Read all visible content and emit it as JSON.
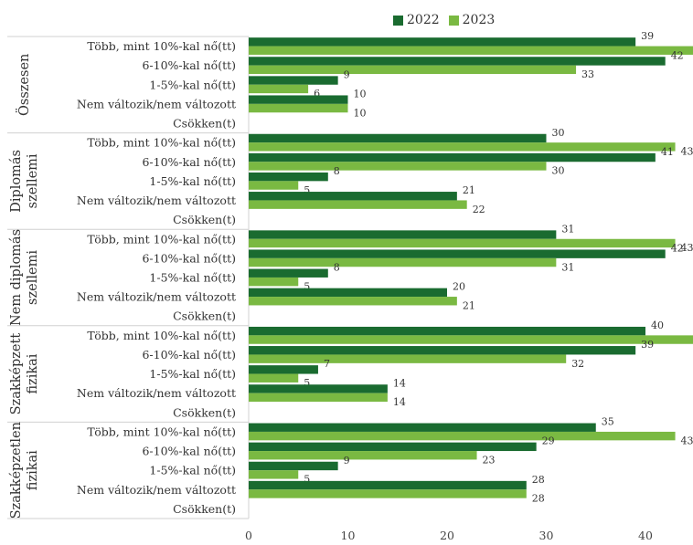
{
  "chart_data": {
    "type": "bar",
    "orientation": "horizontal",
    "legend_position": "top",
    "xlim": [
      0,
      45
    ],
    "x_ticks": [
      0,
      10,
      20,
      30,
      40
    ],
    "categories": [
      "Több, mint 10%-kal nő(tt)",
      "6-10%-kal nő(tt)",
      "1-5%-kal nő(tt)",
      "Nem változik/nem változott",
      "Csökken(t)"
    ],
    "groups": [
      {
        "label": "Összesen",
        "values_2022": [
          39,
          42,
          9,
          10,
          null
        ],
        "values_2023": [
          45,
          33,
          6,
          10,
          null
        ]
      },
      {
        "label": "Diplomás szellemi",
        "values_2022": [
          30,
          41,
          8,
          21,
          null
        ],
        "values_2023": [
          43,
          30,
          5,
          22,
          null
        ]
      },
      {
        "label": "Nem diplomás szellemi",
        "values_2022": [
          31,
          42,
          8,
          20,
          null
        ],
        "values_2023": [
          43,
          31,
          5,
          21,
          null
        ]
      },
      {
        "label": "Szakképzett fizikai",
        "values_2022": [
          40,
          39,
          7,
          14,
          null
        ],
        "values_2023": [
          45,
          32,
          5,
          14,
          null
        ]
      },
      {
        "label": "Szakképzetlen fizikai",
        "values_2022": [
          35,
          29,
          9,
          28,
          null
        ],
        "values_2023": [
          43,
          23,
          5,
          28,
          null
        ]
      }
    ],
    "series": [
      {
        "name": "2022",
        "color": "#1a6b30"
      },
      {
        "name": "2023",
        "color": "#7ab942"
      }
    ],
    "grid": false
  }
}
